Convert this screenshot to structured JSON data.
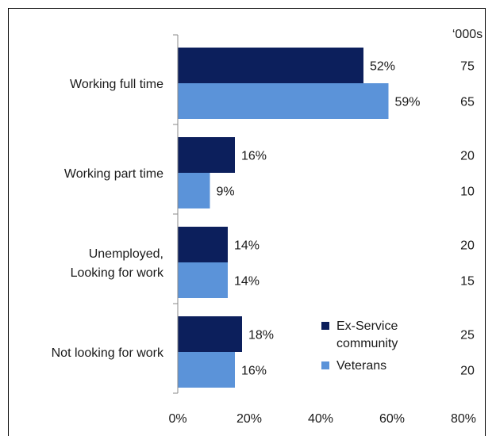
{
  "chart_data": {
    "type": "bar",
    "orientation": "horizontal",
    "categories": [
      [
        "Working full time"
      ],
      [
        "Working part time"
      ],
      [
        "Unemployed,",
        "Looking for work"
      ],
      [
        "Not looking for work"
      ]
    ],
    "series": [
      {
        "name": "Ex-Service community",
        "legend_lines": [
          "Ex-Service",
          "community"
        ],
        "color": "#0c1f5c",
        "values": [
          52,
          16,
          14,
          18
        ],
        "labels": [
          "52%",
          "16%",
          "14%",
          "18%"
        ],
        "thousands": [
          "75",
          "20",
          "20",
          "25"
        ]
      },
      {
        "name": "Veterans",
        "legend_lines": [
          "Veterans"
        ],
        "color": "#5b93d9",
        "values": [
          59,
          9,
          14,
          16
        ],
        "labels": [
          "59%",
          "9%",
          "14%",
          "16%"
        ],
        "thousands": [
          "65",
          "10",
          "15",
          "20"
        ]
      }
    ],
    "thousands_header": "‘000s",
    "xlim": [
      0,
      80
    ],
    "xticks": [
      "0%",
      "20%",
      "40%",
      "60%",
      "80%"
    ],
    "grid": false,
    "legend_position": "bottom-right"
  }
}
